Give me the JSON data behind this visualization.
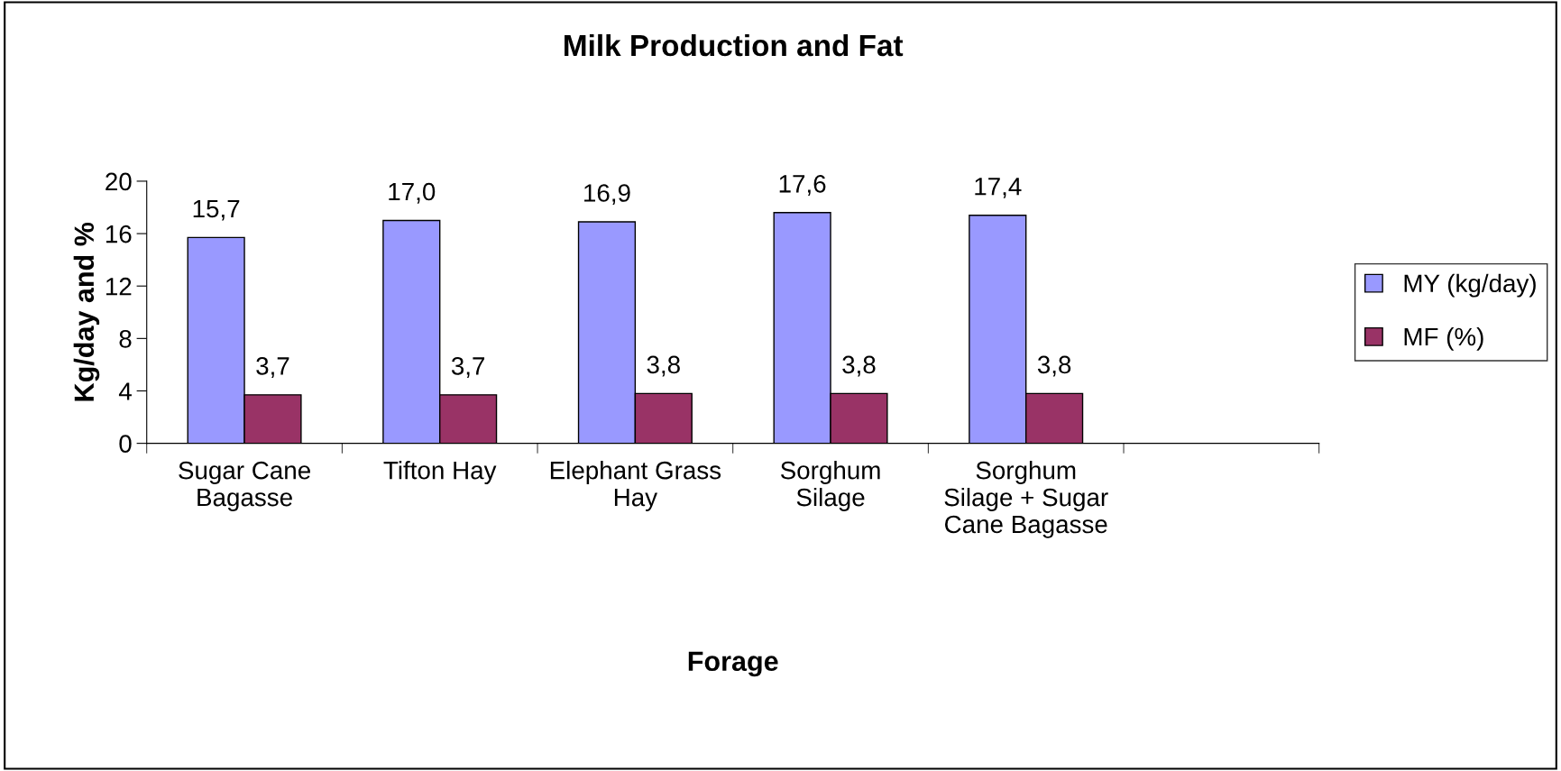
{
  "chart_data": {
    "type": "bar",
    "title": "Milk Production and Fat",
    "xlabel": "Forage",
    "ylabel": "Kg/day and %",
    "categories": [
      "Sugar Cane\nBagasse",
      "Tifton Hay",
      "Elephant Grass\nHay",
      "Sorghum\nSilage",
      "Sorghum\nSilage + Sugar\nCane Bagasse",
      null
    ],
    "series": [
      {
        "name": "MY (kg/day)",
        "color": "#9999ff",
        "values": [
          15.7,
          17.0,
          16.9,
          17.6,
          17.4,
          null
        ],
        "value_labels": [
          "15,7",
          "17,0",
          "16,9",
          "17,6",
          "17,4",
          null
        ]
      },
      {
        "name": "MF (%)",
        "color": "#993366",
        "values": [
          3.7,
          3.7,
          3.8,
          3.8,
          3.8,
          null
        ],
        "value_labels": [
          "3,7",
          "3,7",
          "3,8",
          "3,8",
          "3,8",
          null
        ]
      }
    ],
    "ylim": [
      0,
      20
    ],
    "yticks": [
      0,
      4,
      8,
      12,
      16,
      20
    ],
    "grid": false,
    "legend": "right"
  }
}
